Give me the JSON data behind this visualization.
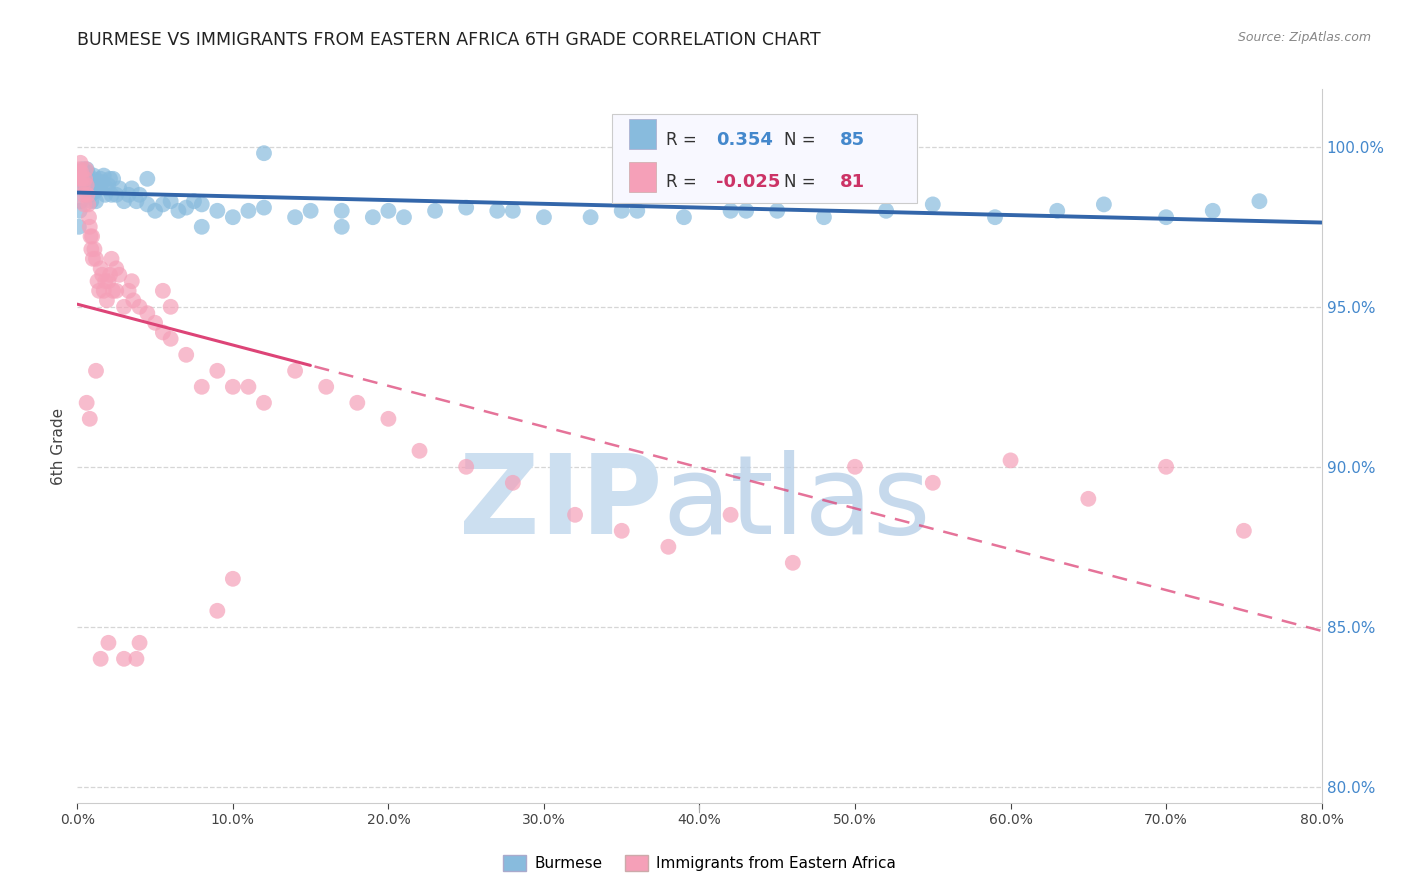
{
  "title": "BURMESE VS IMMIGRANTS FROM EASTERN AFRICA 6TH GRADE CORRELATION CHART",
  "source": "Source: ZipAtlas.com",
  "ylabel": "6th Grade",
  "y_ticks": [
    80.0,
    85.0,
    90.0,
    95.0,
    100.0
  ],
  "x_ticks_vals": [
    0.0,
    10.0,
    20.0,
    30.0,
    40.0,
    50.0,
    60.0,
    70.0,
    80.0
  ],
  "x_min": 0.0,
  "x_max": 80.0,
  "y_min": 79.5,
  "y_max": 101.8,
  "blue_R": 0.354,
  "blue_N": 85,
  "pink_R": -0.025,
  "pink_N": 81,
  "blue_color": "#88bbdd",
  "pink_color": "#f5a0b8",
  "blue_line_color": "#3366aa",
  "pink_line_color": "#dd4477",
  "background_color": "#ffffff",
  "legend_box_color": "#f8f8ff",
  "legend_border_color": "#cccccc",
  "blue_label": "Burmese",
  "pink_label": "Immigrants from Eastern Africa",
  "blue_x": [
    0.1,
    0.15,
    0.2,
    0.25,
    0.3,
    0.35,
    0.4,
    0.45,
    0.5,
    0.55,
    0.6,
    0.65,
    0.7,
    0.75,
    0.8,
    0.85,
    0.9,
    0.95,
    1.0,
    1.05,
    1.1,
    1.15,
    1.2,
    1.3,
    1.4,
    1.5,
    1.6,
    1.7,
    1.8,
    1.9,
    2.0,
    2.1,
    2.2,
    2.3,
    2.5,
    2.7,
    3.0,
    3.3,
    3.5,
    3.8,
    4.0,
    4.5,
    5.0,
    5.5,
    6.0,
    6.5,
    7.0,
    7.5,
    8.0,
    9.0,
    10.0,
    11.0,
    12.0,
    14.0,
    15.0,
    17.0,
    19.0,
    21.0,
    23.0,
    25.0,
    27.0,
    30.0,
    33.0,
    36.0,
    39.0,
    42.0,
    45.0,
    48.0,
    52.0,
    55.0,
    59.0,
    63.0,
    66.0,
    70.0,
    73.0,
    76.0,
    50.0,
    20.0,
    8.0,
    28.0,
    35.0,
    12.0,
    43.0,
    17.0,
    4.5
  ],
  "blue_y": [
    97.5,
    98.0,
    98.3,
    99.0,
    99.2,
    99.3,
    99.0,
    98.7,
    98.8,
    99.1,
    99.3,
    99.2,
    99.0,
    98.9,
    98.7,
    98.5,
    98.3,
    98.8,
    99.0,
    99.1,
    98.9,
    98.6,
    98.3,
    98.7,
    98.8,
    99.0,
    98.9,
    99.1,
    98.5,
    98.7,
    98.8,
    99.0,
    98.5,
    99.0,
    98.5,
    98.7,
    98.3,
    98.5,
    98.7,
    98.3,
    98.5,
    98.2,
    98.0,
    98.2,
    98.3,
    98.0,
    98.1,
    98.3,
    98.2,
    98.0,
    97.8,
    98.0,
    98.1,
    97.8,
    98.0,
    98.0,
    97.8,
    97.8,
    98.0,
    98.1,
    98.0,
    97.8,
    97.8,
    98.0,
    97.8,
    98.0,
    98.0,
    97.8,
    98.0,
    98.2,
    97.8,
    98.0,
    98.2,
    97.8,
    98.0,
    98.3,
    99.0,
    98.0,
    97.5,
    98.0,
    98.0,
    99.8,
    98.0,
    97.5,
    99.0
  ],
  "pink_x": [
    0.05,
    0.1,
    0.15,
    0.2,
    0.25,
    0.3,
    0.35,
    0.4,
    0.45,
    0.5,
    0.55,
    0.6,
    0.65,
    0.7,
    0.75,
    0.8,
    0.85,
    0.9,
    0.95,
    1.0,
    1.1,
    1.2,
    1.3,
    1.4,
    1.5,
    1.6,
    1.7,
    1.8,
    1.9,
    2.0,
    2.1,
    2.2,
    2.3,
    2.5,
    2.7,
    3.0,
    3.3,
    3.6,
    4.0,
    4.5,
    5.0,
    5.5,
    6.0,
    7.0,
    8.0,
    9.0,
    10.0,
    11.0,
    12.0,
    14.0,
    16.0,
    18.0,
    20.0,
    22.0,
    25.0,
    28.0,
    32.0,
    35.0,
    38.0,
    42.0,
    46.0,
    50.0,
    55.0,
    60.0,
    65.0,
    70.0,
    75.0,
    4.0,
    3.0,
    2.0,
    1.5,
    0.8,
    0.6,
    1.2,
    2.5,
    3.5,
    5.5,
    9.0,
    10.0,
    6.0,
    3.8
  ],
  "pink_y": [
    99.0,
    99.2,
    99.3,
    99.5,
    99.2,
    99.0,
    98.8,
    98.5,
    98.2,
    99.0,
    99.3,
    98.8,
    98.5,
    98.2,
    97.8,
    97.5,
    97.2,
    96.8,
    97.2,
    96.5,
    96.8,
    96.5,
    95.8,
    95.5,
    96.2,
    96.0,
    95.5,
    95.8,
    95.2,
    95.8,
    96.0,
    96.5,
    95.5,
    96.2,
    96.0,
    95.0,
    95.5,
    95.2,
    95.0,
    94.8,
    94.5,
    94.2,
    94.0,
    93.5,
    92.5,
    93.0,
    92.5,
    92.5,
    92.0,
    93.0,
    92.5,
    92.0,
    91.5,
    90.5,
    90.0,
    89.5,
    88.5,
    88.0,
    87.5,
    88.5,
    87.0,
    90.0,
    89.5,
    90.2,
    89.0,
    90.0,
    88.0,
    84.5,
    84.0,
    84.5,
    84.0,
    91.5,
    92.0,
    93.0,
    95.5,
    95.8,
    95.5,
    85.5,
    86.5,
    95.0,
    84.0
  ]
}
